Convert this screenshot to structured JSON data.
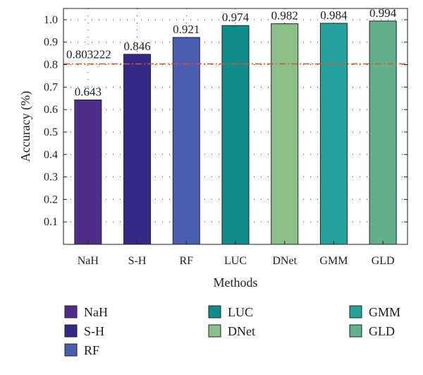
{
  "chart_data": {
    "type": "bar",
    "xlabel": "Methods",
    "ylabel": "Accuracy (%)",
    "ylim": [
      0,
      1.05
    ],
    "yticks": [
      "0.1",
      "0.2",
      "0.3",
      "0.4",
      "0.5",
      "0.6",
      "0.7",
      "0.8",
      "0.9",
      "1.0"
    ],
    "categories": [
      "NaH",
      "S-H",
      "RF",
      "LUC",
      "DNet",
      "GMM",
      "GLD"
    ],
    "values": [
      0.643,
      0.846,
      0.921,
      0.974,
      0.982,
      0.984,
      0.994
    ],
    "value_labels": [
      "0.643",
      "0.846",
      "0.921",
      "0.974",
      "0.982",
      "0.984",
      "0.994"
    ],
    "colors": [
      "#4e2d8a",
      "#332a86",
      "#4b5db0",
      "#0f8b8d",
      "#8cc08a",
      "#25a29c",
      "#62b08d"
    ],
    "reference_line": {
      "value": 0.803222,
      "label": "0.803222",
      "color": "#d9542b"
    },
    "grid": true,
    "legend_position": "bottom",
    "legend": {
      "columns": [
        [
          "NaH",
          "S-H",
          "RF"
        ],
        [
          "LUC",
          "DNet"
        ],
        [
          "GMM",
          "GLD"
        ]
      ]
    }
  }
}
